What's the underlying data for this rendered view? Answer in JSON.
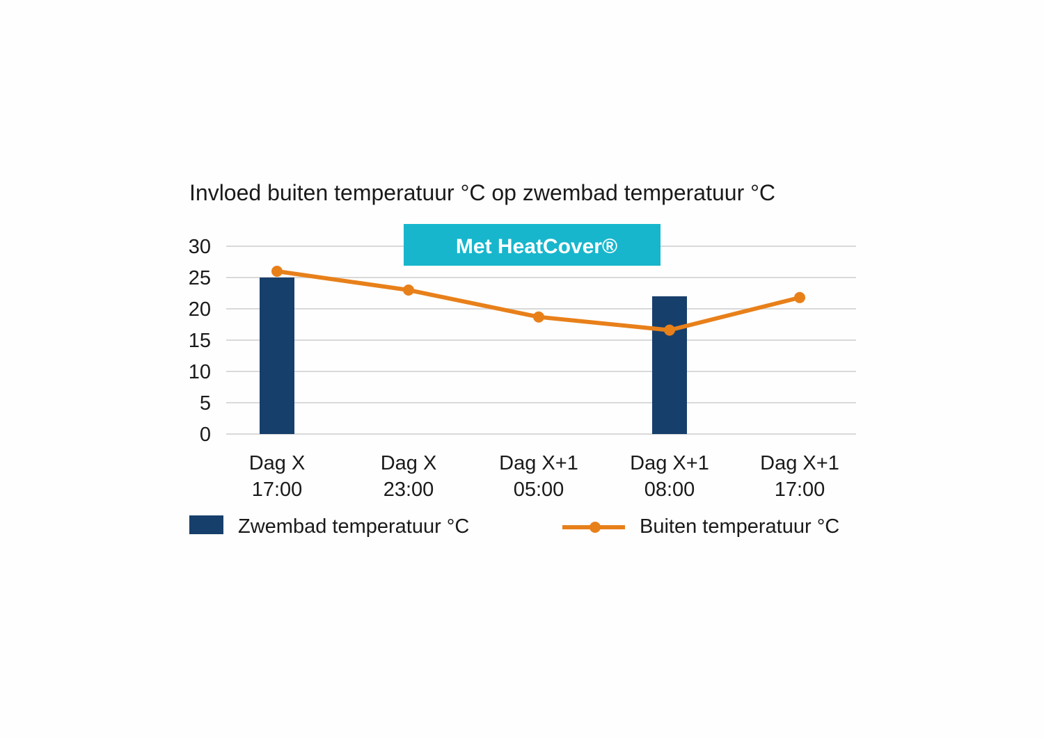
{
  "chart_data": {
    "type": "bar+line",
    "title": "Invloed buiten temperatuur °C op zwembad temperatuur °C",
    "annotation": "Met HeatCover®",
    "categories": [
      [
        "Dag X",
        "17:00"
      ],
      [
        "Dag X",
        "23:00"
      ],
      [
        "Dag X+1",
        "05:00"
      ],
      [
        "Dag X+1",
        "08:00"
      ],
      [
        "Dag X+1",
        "17:00"
      ]
    ],
    "ylim": [
      0,
      30
    ],
    "yticks": [
      0,
      5,
      10,
      15,
      20,
      25,
      30
    ],
    "grid": true,
    "legend_position": "bottom",
    "series": [
      {
        "name": "Zwembad temperatuur °C",
        "type": "bar",
        "color": "#173f6b",
        "values": [
          25,
          null,
          null,
          22,
          null
        ]
      },
      {
        "name": "Buiten temperatuur °C",
        "type": "line",
        "color": "#e8801a",
        "values": [
          26,
          23,
          18.7,
          16.6,
          21.8
        ]
      }
    ],
    "annotation_color": "#17b6cc"
  }
}
